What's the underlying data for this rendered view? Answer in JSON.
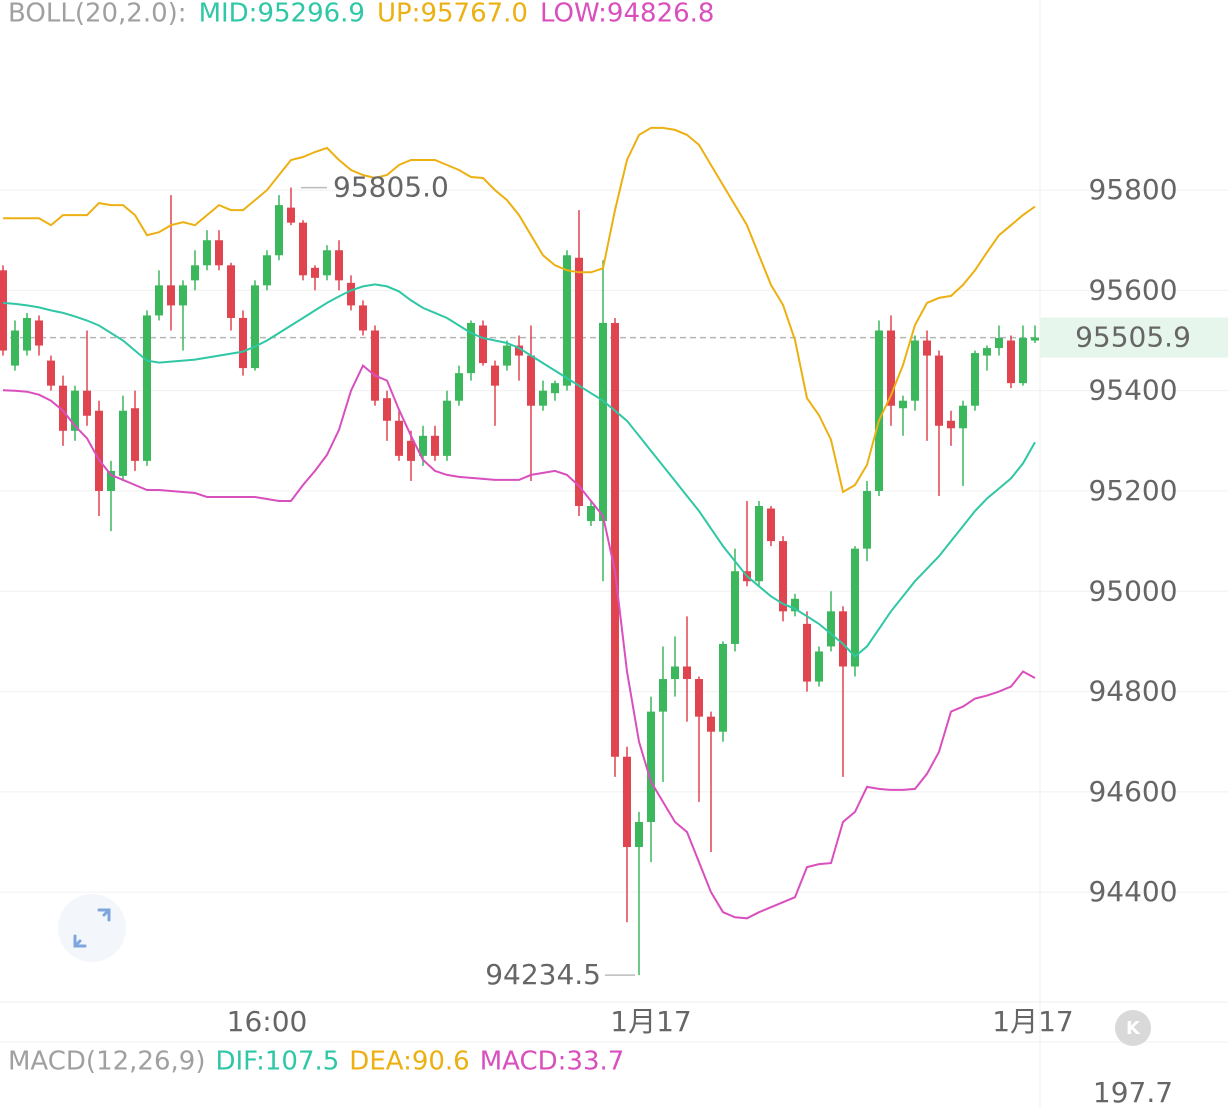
{
  "chart_data": {
    "type": "candlestick",
    "indicator_label": "BOLL(20,2.0):",
    "categories": [
      null,
      null,
      null,
      null,
      null,
      null,
      null,
      null,
      null,
      null,
      null,
      null,
      null,
      null,
      null,
      null,
      null,
      null,
      null,
      null,
      null,
      null,
      "16:00",
      null,
      null,
      null,
      null,
      null,
      null,
      null,
      null,
      null,
      null,
      null,
      null,
      null,
      null,
      null,
      null,
      null,
      null,
      null,
      null,
      null,
      null,
      null,
      null,
      null,
      null,
      null,
      null,
      null,
      null,
      null,
      "1月17",
      null,
      null,
      null,
      null,
      null,
      null,
      null,
      null,
      null,
      null,
      null,
      null,
      null,
      null,
      null,
      null,
      null,
      null,
      null,
      null,
      null,
      null,
      null,
      null,
      null,
      null,
      null,
      null,
      null,
      null,
      null,
      "1月17"
    ],
    "open": [
      95640,
      95450,
      95480,
      95540,
      95460,
      95410,
      95320,
      95400,
      95360,
      95200,
      95230,
      95365,
      95260,
      95550,
      95610,
      95570,
      95620,
      95650,
      95700,
      95650,
      95545,
      95445,
      95610,
      95670,
      95765,
      95735,
      95645,
      95630,
      95680,
      95615,
      95570,
      95520,
      95385,
      95340,
      95300,
      95270,
      95310,
      95270,
      95380,
      95435,
      95530,
      95450,
      95450,
      95490,
      95470,
      95370,
      95395,
      95410,
      95665,
      95140,
      95140,
      95535,
      94670,
      94490,
      94540,
      94760,
      94825,
      94850,
      94825,
      94750,
      94720,
      94895,
      95040,
      95020,
      95165,
      95100,
      94960,
      94935,
      94820,
      94890,
      94960,
      94850,
      95085,
      95200,
      95520,
      95365,
      95380,
      95500,
      95470,
      95340,
      95325,
      95370,
      95470,
      95485,
      95500,
      95415,
      95500
    ],
    "high": [
      95650,
      95540,
      95555,
      95550,
      95470,
      95430,
      95410,
      95520,
      95380,
      95260,
      95390,
      95400,
      95560,
      95640,
      95790,
      95620,
      95680,
      95720,
      95720,
      95655,
      95560,
      95620,
      95680,
      95790,
      95805,
      95740,
      95650,
      95690,
      95700,
      95630,
      95580,
      95530,
      95400,
      95360,
      95320,
      95330,
      95330,
      95400,
      95450,
      95540,
      95540,
      95460,
      95500,
      95510,
      95530,
      95420,
      95420,
      95680,
      95760,
      95180,
      95660,
      95545,
      94690,
      94560,
      94790,
      94890,
      94910,
      94950,
      94830,
      94760,
      94900,
      95085,
      95180,
      95180,
      95170,
      95110,
      94995,
      94960,
      94890,
      95000,
      94970,
      95090,
      95220,
      95540,
      95550,
      95390,
      95510,
      95520,
      95480,
      95360,
      95380,
      95480,
      95490,
      95530,
      95510,
      95530,
      95530
    ],
    "low": [
      95470,
      95440,
      95470,
      95470,
      95400,
      95290,
      95300,
      95330,
      95150,
      95120,
      95220,
      95240,
      95250,
      95540,
      95520,
      95480,
      95600,
      95640,
      95640,
      95520,
      95430,
      95440,
      95600,
      95660,
      95730,
      95620,
      95600,
      95620,
      95600,
      95560,
      95510,
      95370,
      95300,
      95260,
      95220,
      95250,
      95260,
      95260,
      95370,
      95420,
      95450,
      95330,
      95440,
      95420,
      95220,
      95360,
      95380,
      95400,
      95150,
      95130,
      95020,
      94630,
      94340,
      94234.5,
      94460,
      94620,
      94790,
      94740,
      94580,
      94480,
      94700,
      94880,
      95010,
      95010,
      95090,
      94940,
      94950,
      94800,
      94810,
      94880,
      94630,
      94830,
      95060,
      95190,
      95330,
      95310,
      95360,
      95300,
      95190,
      95290,
      95210,
      95360,
      95440,
      95470,
      95405,
      95410,
      95495
    ],
    "close": [
      95480,
      95520,
      95545,
      95490,
      95410,
      95320,
      95400,
      95350,
      95200,
      95240,
      95360,
      95260,
      95550,
      95610,
      95570,
      95610,
      95650,
      95700,
      95650,
      95545,
      95445,
      95610,
      95670,
      95770,
      95735,
      95630,
      95625,
      95680,
      95620,
      95570,
      95520,
      95380,
      95340,
      95270,
      95260,
      95310,
      95270,
      95380,
      95435,
      95535,
      95455,
      95410,
      95490,
      95470,
      95370,
      95400,
      95415,
      95670,
      95170,
      95170,
      95535,
      94670,
      94490,
      94540,
      94760,
      94825,
      94850,
      94825,
      94750,
      94720,
      94895,
      95040,
      95020,
      95170,
      95100,
      94960,
      94985,
      94820,
      94880,
      94960,
      94850,
      95085,
      95200,
      95520,
      95370,
      95380,
      95500,
      95470,
      95330,
      95325,
      95370,
      95475,
      95485,
      95505,
      95415,
      95505,
      95505.9
    ],
    "up_color": "#3bb85c",
    "down_color": "#e0444f",
    "series": [
      {
        "name": "MID:95296.9",
        "color": "#2fc7a5",
        "values": [
          95575,
          95573,
          95570,
          95566,
          95560,
          95555,
          95548,
          95540,
          95530,
          95515,
          95500,
          95480,
          95460,
          95456,
          95458,
          95460,
          95462,
          95466,
          95470,
          95474,
          95478,
          95488,
          95500,
          95515,
          95530,
          95545,
          95560,
          95575,
          95588,
          95600,
          95608,
          95612,
          95608,
          95598,
          95580,
          95565,
          95555,
          95545,
          95530,
          95515,
          95505,
          95500,
          95495,
          95485,
          95470,
          95455,
          95440,
          95425,
          95410,
          95395,
          95380,
          95360,
          95340,
          95310,
          95280,
          95250,
          95220,
          95190,
          95160,
          95125,
          95090,
          95060,
          95030,
          95010,
          94990,
          94975,
          94965,
          94950,
          94935,
          94915,
          94895,
          94870,
          94890,
          94925,
          94960,
          94990,
          95020,
          95045,
          95070,
          95100,
          95130,
          95160,
          95185,
          95205,
          95225,
          95255,
          95297
        ]
      },
      {
        "name": "UP:95767.0",
        "color": "#ecb012",
        "values": [
          95744,
          95744,
          95744,
          95744,
          95730,
          95750,
          95750,
          95750,
          95774,
          95770,
          95770,
          95750,
          95710,
          95716,
          95730,
          95736,
          95730,
          95750,
          95770,
          95760,
          95760,
          95780,
          95800,
          95830,
          95860,
          95866,
          95876,
          95884,
          95860,
          95840,
          95830,
          95824,
          95830,
          95850,
          95860,
          95860,
          95860,
          95850,
          95840,
          95826,
          95824,
          95800,
          95780,
          95750,
          95710,
          95670,
          95650,
          95640,
          95636,
          95636,
          95644,
          95760,
          95860,
          95910,
          95924,
          95924,
          95920,
          95910,
          95890,
          95850,
          95810,
          95770,
          95730,
          95670,
          95611,
          95571,
          95501,
          95385,
          95351,
          95302,
          95198,
          95212,
          95252,
          95341,
          95391,
          95451,
          95531,
          95575,
          95585,
          95589,
          95611,
          95640,
          95676,
          95710,
          95730,
          95750,
          95767
        ]
      },
      {
        "name": "LOW:94826.8",
        "color": "#d94fbe",
        "values": [
          95401,
          95400,
          95398,
          95392,
          95380,
          95360,
          95330,
          95305,
          95262,
          95232,
          95222,
          95212,
          95202,
          95202,
          95200,
          95198,
          95196,
          95188,
          95188,
          95188,
          95188,
          95188,
          95184,
          95180,
          95180,
          95212,
          95240,
          95272,
          95322,
          95400,
          95450,
          95430,
          95420,
          95362,
          95310,
          95262,
          95240,
          95232,
          95228,
          95226,
          95224,
          95222,
          95222,
          95222,
          95232,
          95236,
          95240,
          95232,
          95210,
          95180,
          95150,
          95040,
          94840,
          94700,
          94620,
          94580,
          94540,
          94520,
          94460,
          94400,
          94360,
          94350,
          94348,
          94360,
          94370,
          94380,
          94390,
          94450,
          94456,
          94458,
          94540,
          94560,
          94610,
          94606,
          94604,
          94604,
          94606,
          94636,
          94680,
          94760,
          94770,
          94786,
          94792,
          94800,
          94810,
          94840,
          94827
        ]
      }
    ],
    "ylim": [
      94185,
      96179
    ],
    "yticks": [
      94400,
      94600,
      94800,
      95000,
      95200,
      95400,
      95600,
      95800
    ],
    "grid": true,
    "last_price": 95505.9,
    "annotations": [
      {
        "value": 95805,
        "label": "95805.0"
      },
      {
        "value": 94234.5,
        "label": "94234.5"
      }
    ]
  },
  "macd": {
    "title": "MACD(12,26,9)",
    "items": [
      {
        "text": "DIF:107.5",
        "color": "#2fc7a5"
      },
      {
        "text": "DEA:90.6",
        "color": "#ecb012"
      },
      {
        "text": "MACD:33.7",
        "color": "#d94fbe"
      }
    ],
    "yticks": [
      197.7
    ]
  },
  "k_button": "K"
}
